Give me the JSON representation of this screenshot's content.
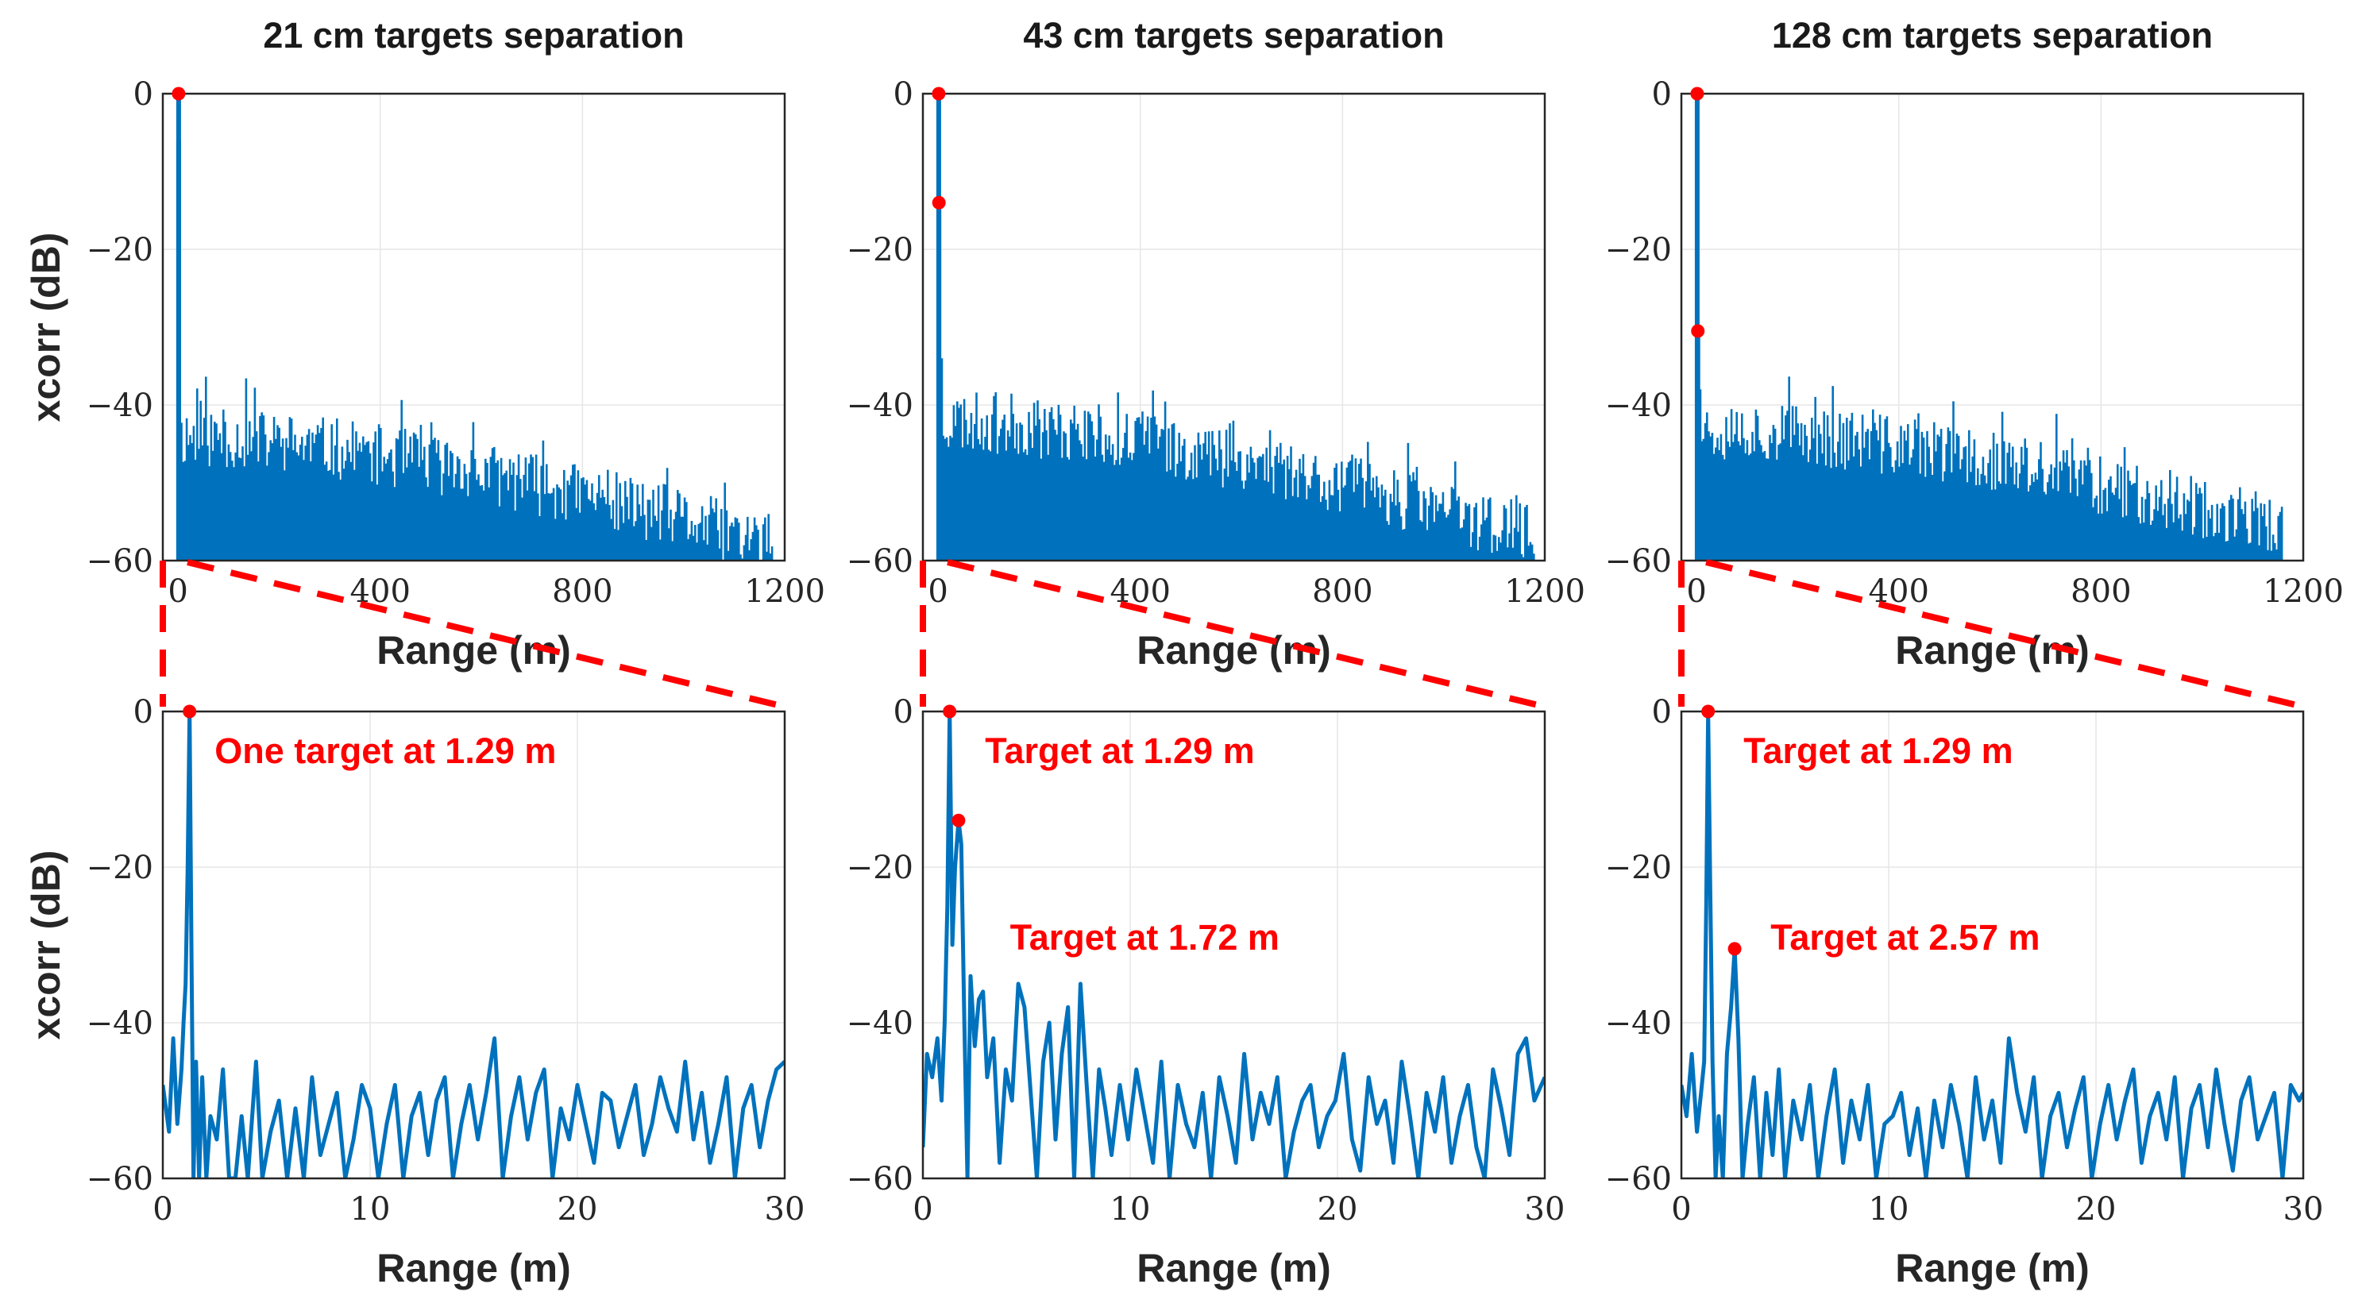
{
  "colors": {
    "series": "#0072bd",
    "annotation": "#ff0000",
    "axis": "#262626"
  },
  "chart_data": [
    {
      "id": "top-left",
      "type": "line",
      "title": "21 cm targets separation",
      "xlabel": "Range (m)",
      "ylabel": "xcorr (dB)",
      "xlim": [
        -30,
        1200
      ],
      "ylim": [
        -60,
        0
      ],
      "xticks": [
        0,
        400,
        800,
        1200
      ],
      "xtick_labels": [
        "0",
        "400",
        "800",
        "1200"
      ],
      "yticks": [
        -60,
        -40,
        -20,
        0
      ],
      "ytick_labels": [
        "−60",
        "−40",
        "−20",
        "0"
      ],
      "peaks": [
        {
          "x": 1.29,
          "y": 0
        }
      ],
      "noise": {
        "x_end": 1180,
        "start_level": -44,
        "end_level": -58,
        "stem_level": -6,
        "stem_at": 1.3,
        "seed": 11
      },
      "annotations": []
    },
    {
      "id": "top-middle",
      "type": "line",
      "title": "43 cm targets separation",
      "xlabel": "Range (m)",
      "ylabel": "",
      "xlim": [
        -30,
        1200
      ],
      "ylim": [
        -60,
        0
      ],
      "xticks": [
        0,
        400,
        800,
        1200
      ],
      "xtick_labels": [
        "0",
        "400",
        "800",
        "1200"
      ],
      "yticks": [
        -60,
        -40,
        -20,
        0
      ],
      "ytick_labels": [
        "−60",
        "−40",
        "−20",
        "0"
      ],
      "peaks": [
        {
          "x": 1.29,
          "y": 0
        },
        {
          "x": 1.72,
          "y": -14
        }
      ],
      "noise": {
        "x_end": 1180,
        "start_level": -42,
        "end_level": -57,
        "stem_level": -34,
        "stem_at": 5,
        "seed": 23
      },
      "annotations": []
    },
    {
      "id": "top-right",
      "type": "line",
      "title": "128 cm targets separation",
      "xlabel": "Range (m)",
      "ylabel": "",
      "xlim": [
        -30,
        1200
      ],
      "ylim": [
        -60,
        0
      ],
      "xticks": [
        0,
        400,
        800,
        1200
      ],
      "xtick_labels": [
        "0",
        "400",
        "800",
        "1200"
      ],
      "yticks": [
        -60,
        -40,
        -20,
        0
      ],
      "ytick_labels": [
        "−60",
        "−40",
        "−20",
        "0"
      ],
      "peaks": [
        {
          "x": 1.29,
          "y": 0
        },
        {
          "x": 2.57,
          "y": -30.5
        }
      ],
      "noise": {
        "x_end": 1160,
        "start_level": -43,
        "end_level": -56,
        "stem_level": -38,
        "stem_at": 5,
        "seed": 37
      },
      "annotations": []
    },
    {
      "id": "bottom-left",
      "type": "line",
      "title": "",
      "xlabel": "Range (m)",
      "ylabel": "xcorr (dB)",
      "xlim": [
        0,
        30
      ],
      "ylim": [
        -60,
        0
      ],
      "xticks": [
        0,
        10,
        20,
        30
      ],
      "xtick_labels": [
        "0",
        "10",
        "20",
        "30"
      ],
      "yticks": [
        -60,
        -40,
        -20,
        0
      ],
      "ytick_labels": [
        "−60",
        "−40",
        "−20",
        "0"
      ],
      "x": [
        0,
        0.3,
        0.5,
        0.7,
        0.9,
        1.0,
        1.1,
        1.2,
        1.29,
        1.38,
        1.48,
        1.6,
        1.75,
        1.9,
        2.1,
        2.3,
        2.6,
        2.9,
        3.2,
        3.5,
        3.8,
        4.1,
        4.5,
        4.8,
        5.2,
        5.6,
        6.0,
        6.4,
        6.8,
        7.2,
        7.6,
        8.0,
        8.4,
        8.8,
        9.2,
        9.6,
        10.0,
        10.4,
        10.8,
        11.2,
        11.6,
        12.0,
        12.4,
        12.8,
        13.2,
        13.6,
        14.0,
        14.4,
        14.8,
        15.2,
        15.6,
        16.0,
        16.4,
        16.8,
        17.2,
        17.6,
        18.0,
        18.4,
        18.8,
        19.2,
        19.6,
        20.0,
        20.4,
        20.8,
        21.2,
        21.6,
        22.0,
        22.4,
        22.8,
        23.2,
        23.6,
        24.0,
        24.4,
        24.8,
        25.2,
        25.6,
        26.0,
        26.4,
        26.8,
        27.2,
        27.6,
        28.0,
        28.4,
        28.8,
        29.2,
        29.6,
        30.0
      ],
      "y": [
        -48,
        -54,
        -42,
        -53,
        -46,
        -40,
        -35,
        -20,
        0,
        -30,
        -60,
        -45,
        -60,
        -47,
        -60,
        -52,
        -55,
        -46,
        -60,
        -60,
        -52,
        -60,
        -45,
        -60,
        -54,
        -50,
        -60,
        -51,
        -60,
        -47,
        -57,
        -53,
        -49,
        -60,
        -55,
        -48,
        -51,
        -60,
        -53,
        -48,
        -60,
        -52,
        -49,
        -57,
        -50,
        -47,
        -60,
        -53,
        -48,
        -55,
        -49,
        -42,
        -60,
        -52,
        -47,
        -55,
        -49,
        -46,
        -60,
        -51,
        -55,
        -48,
        -53,
        -58,
        -49,
        -50,
        -56,
        -52,
        -48,
        -57,
        -53,
        -47,
        -51,
        -54,
        -45,
        -55,
        -49,
        -58,
        -53,
        -47,
        -60,
        -51,
        -48,
        -56,
        -50,
        -46,
        -45
      ],
      "peaks": [
        {
          "x": 1.29,
          "y": 0
        }
      ],
      "annotations": [
        {
          "text": "One target at 1.29 m",
          "x": 2.5,
          "y": -5
        }
      ]
    },
    {
      "id": "bottom-middle",
      "type": "line",
      "title": "",
      "xlabel": "Range (m)",
      "ylabel": "",
      "xlim": [
        0,
        30
      ],
      "ylim": [
        -60,
        0
      ],
      "xticks": [
        0,
        10,
        20,
        30
      ],
      "xtick_labels": [
        "0",
        "10",
        "20",
        "30"
      ],
      "yticks": [
        -60,
        -40,
        -20,
        0
      ],
      "ytick_labels": [
        "−60",
        "−40",
        "−20",
        "0"
      ],
      "x": [
        0,
        0.2,
        0.45,
        0.7,
        0.9,
        1.05,
        1.18,
        1.29,
        1.42,
        1.55,
        1.72,
        1.85,
        2.0,
        2.15,
        2.3,
        2.5,
        2.7,
        2.9,
        3.1,
        3.4,
        3.7,
        4.0,
        4.3,
        4.6,
        4.9,
        5.2,
        5.5,
        5.8,
        6.1,
        6.4,
        6.7,
        7.0,
        7.3,
        7.6,
        7.9,
        8.2,
        8.5,
        8.8,
        9.1,
        9.5,
        9.9,
        10.3,
        10.7,
        11.1,
        11.5,
        11.9,
        12.3,
        12.7,
        13.1,
        13.5,
        13.9,
        14.3,
        14.7,
        15.1,
        15.5,
        15.9,
        16.3,
        16.7,
        17.1,
        17.5,
        17.9,
        18.3,
        18.7,
        19.1,
        19.5,
        19.9,
        20.3,
        20.7,
        21.1,
        21.5,
        21.9,
        22.3,
        22.7,
        23.1,
        23.5,
        23.9,
        24.3,
        24.7,
        25.1,
        25.5,
        25.9,
        26.3,
        26.7,
        27.1,
        27.5,
        27.9,
        28.3,
        28.7,
        29.1,
        29.5,
        30.0
      ],
      "y": [
        -56,
        -44,
        -47,
        -42,
        -50,
        -40,
        -25,
        0,
        -30,
        -20,
        -14,
        -17,
        -40,
        -60,
        -34,
        -43,
        -37,
        -36,
        -47,
        -42,
        -58,
        -46,
        -50,
        -35,
        -38,
        -49,
        -60,
        -45,
        -40,
        -55,
        -44,
        -38,
        -60,
        -35,
        -48,
        -60,
        -46,
        -51,
        -57,
        -48,
        -55,
        -46,
        -52,
        -58,
        -45,
        -60,
        -48,
        -53,
        -56,
        -49,
        -60,
        -47,
        -52,
        -58,
        -44,
        -55,
        -49,
        -53,
        -47,
        -60,
        -54,
        -50,
        -48,
        -56,
        -52,
        -50,
        -44,
        -55,
        -59,
        -47,
        -53,
        -50,
        -58,
        -45,
        -52,
        -60,
        -49,
        -54,
        -47,
        -58,
        -52,
        -48,
        -56,
        -60,
        -46,
        -51,
        -57,
        -44,
        -42,
        -50,
        -47
      ],
      "peaks": [
        {
          "x": 1.29,
          "y": 0
        },
        {
          "x": 1.72,
          "y": -14
        }
      ],
      "annotations": [
        {
          "text": "Target at 1.29 m",
          "x": 3.0,
          "y": -5
        },
        {
          "text": "Target at 1.72 m",
          "x": 4.2,
          "y": -29
        }
      ]
    },
    {
      "id": "bottom-right",
      "type": "line",
      "title": "",
      "xlabel": "Range (m)",
      "ylabel": "",
      "xlim": [
        0,
        30
      ],
      "ylim": [
        -60,
        0
      ],
      "xticks": [
        0,
        10,
        20,
        30
      ],
      "xtick_labels": [
        "0",
        "10",
        "20",
        "30"
      ],
      "yticks": [
        -60,
        -40,
        -20,
        0
      ],
      "ytick_labels": [
        "−60",
        "−40",
        "−20",
        "0"
      ],
      "x": [
        0,
        0.25,
        0.5,
        0.75,
        0.95,
        1.1,
        1.2,
        1.29,
        1.38,
        1.5,
        1.65,
        1.8,
        2.0,
        2.2,
        2.4,
        2.57,
        2.75,
        2.95,
        3.2,
        3.5,
        3.8,
        4.1,
        4.4,
        4.7,
        5.0,
        5.4,
        5.8,
        6.2,
        6.6,
        7.0,
        7.4,
        7.8,
        8.2,
        8.6,
        9.0,
        9.4,
        9.8,
        10.2,
        10.6,
        11.0,
        11.4,
        11.8,
        12.2,
        12.6,
        13.0,
        13.4,
        13.8,
        14.2,
        14.6,
        15.0,
        15.4,
        15.8,
        16.2,
        16.6,
        17.0,
        17.4,
        17.8,
        18.2,
        18.6,
        19.0,
        19.4,
        19.8,
        20.2,
        20.6,
        21.0,
        21.4,
        21.8,
        22.2,
        22.6,
        23.0,
        23.4,
        23.8,
        24.2,
        24.6,
        25.0,
        25.4,
        25.8,
        26.2,
        26.6,
        27.0,
        27.4,
        27.8,
        28.2,
        28.6,
        29.0,
        29.4,
        29.8,
        30.0
      ],
      "y": [
        -48,
        -52,
        -44,
        -54,
        -49,
        -45,
        -25,
        0,
        -20,
        -45,
        -60,
        -52,
        -60,
        -44,
        -38,
        -30.5,
        -42,
        -60,
        -53,
        -47,
        -60,
        -49,
        -57,
        -46,
        -60,
        -50,
        -55,
        -48,
        -60,
        -52,
        -46,
        -58,
        -50,
        -55,
        -48,
        -60,
        -53,
        -52,
        -49,
        -57,
        -51,
        -60,
        -50,
        -56,
        -48,
        -53,
        -60,
        -47,
        -55,
        -50,
        -58,
        -42,
        -49,
        -54,
        -47,
        -60,
        -52,
        -49,
        -56,
        -51,
        -47,
        -60,
        -53,
        -48,
        -55,
        -50,
        -46,
        -58,
        -52,
        -49,
        -55,
        -47,
        -60,
        -51,
        -48,
        -56,
        -46,
        -53,
        -59,
        -50,
        -47,
        -55,
        -52,
        -49,
        -60,
        -48,
        -50,
        -49
      ],
      "peaks": [
        {
          "x": 1.29,
          "y": 0
        },
        {
          "x": 2.57,
          "y": -30.5
        }
      ],
      "annotations": [
        {
          "text": "Target at 1.29 m",
          "x": 3.0,
          "y": -5
        },
        {
          "text": "Target at 2.57 m",
          "x": 4.3,
          "y": -29
        }
      ]
    }
  ]
}
